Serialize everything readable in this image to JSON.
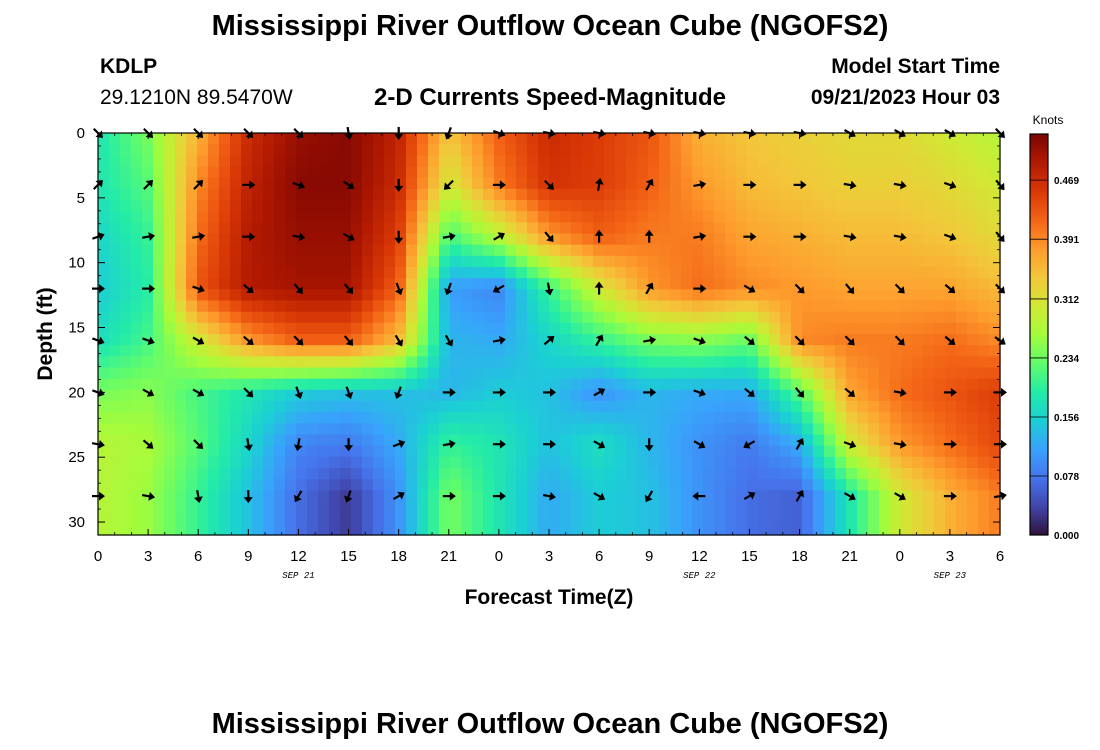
{
  "header": {
    "title": "Mississippi River Outflow Ocean Cube (NGOFS2)",
    "station": "KDLP",
    "coords": "29.1210N  89.5470W",
    "subtitle": "2-D Currents Speed-Magnitude",
    "model_label": "Model Start Time",
    "model_time": "09/21/2023 Hour 03"
  },
  "footer": {
    "title": "Mississippi River Outflow Ocean Cube (NGOFS2)"
  },
  "chart_data": {
    "type": "heatmap",
    "title": "2-D Currents Speed-Magnitude",
    "xlabel": "Forecast Time(Z)",
    "ylabel": "Depth (ft)",
    "x_tick_labels": [
      "0",
      "3",
      "6",
      "9",
      "12",
      "15",
      "18",
      "21",
      "0",
      "3",
      "6",
      "9",
      "12",
      "15",
      "18",
      "21",
      "0",
      "3",
      "6"
    ],
    "date_labels": [
      {
        "text": "SEP 21",
        "hours": 12
      },
      {
        "text": "SEP 22",
        "hours": 36
      },
      {
        "text": "SEP 23",
        "hours": 51
      }
    ],
    "x_range_hours": [
      0,
      54
    ],
    "y_ticks": [
      0,
      5,
      10,
      15,
      20,
      25,
      30
    ],
    "ylim": [
      0,
      31
    ],
    "colorbar": {
      "title": "Knots",
      "ticks": [
        0.0,
        0.078,
        0.156,
        0.234,
        0.312,
        0.391,
        0.469
      ],
      "tick_labels": [
        "0.000",
        "0.078",
        "0.156",
        "0.234",
        "0.312",
        "0.391",
        "0.469"
      ],
      "range": [
        0,
        0.53
      ],
      "colors": [
        "#30123b",
        "#4145ab",
        "#4675ed",
        "#39a2fc",
        "#1bcfd4",
        "#24eca6",
        "#61fc6c",
        "#a4fc3b",
        "#d1e834",
        "#f3c63a",
        "#fe9b2d",
        "#f36315",
        "#d93806",
        "#b11901",
        "#7a0402"
      ]
    },
    "depth_levels_ft": [
      0,
      4,
      8,
      12,
      16,
      20,
      24,
      28
    ],
    "time_hours": [
      0,
      3,
      6,
      9,
      12,
      15,
      18,
      21,
      24,
      27,
      30,
      33,
      36,
      39,
      42,
      45,
      48,
      51,
      54
    ],
    "speed_knots": [
      [
        0.18,
        0.24,
        0.36,
        0.47,
        0.51,
        0.52,
        0.48,
        0.34,
        0.42,
        0.47,
        0.45,
        0.43,
        0.36,
        0.34,
        0.33,
        0.32,
        0.32,
        0.3,
        0.28
      ],
      [
        0.18,
        0.22,
        0.39,
        0.48,
        0.52,
        0.52,
        0.47,
        0.3,
        0.4,
        0.46,
        0.45,
        0.42,
        0.38,
        0.35,
        0.34,
        0.33,
        0.33,
        0.32,
        0.3
      ],
      [
        0.16,
        0.2,
        0.41,
        0.49,
        0.51,
        0.51,
        0.45,
        0.21,
        0.28,
        0.38,
        0.42,
        0.4,
        0.4,
        0.37,
        0.36,
        0.35,
        0.35,
        0.34,
        0.32
      ],
      [
        0.15,
        0.19,
        0.43,
        0.49,
        0.5,
        0.5,
        0.42,
        0.11,
        0.09,
        0.2,
        0.3,
        0.38,
        0.41,
        0.39,
        0.38,
        0.37,
        0.37,
        0.37,
        0.35
      ],
      [
        0.17,
        0.21,
        0.3,
        0.38,
        0.42,
        0.42,
        0.35,
        0.13,
        0.12,
        0.16,
        0.2,
        0.24,
        0.25,
        0.23,
        0.39,
        0.4,
        0.4,
        0.41,
        0.39
      ],
      [
        0.24,
        0.25,
        0.21,
        0.18,
        0.15,
        0.14,
        0.14,
        0.13,
        0.15,
        0.14,
        0.1,
        0.13,
        0.12,
        0.12,
        0.22,
        0.37,
        0.41,
        0.43,
        0.45
      ],
      [
        0.28,
        0.27,
        0.22,
        0.16,
        0.09,
        0.08,
        0.12,
        0.2,
        0.18,
        0.14,
        0.17,
        0.13,
        0.1,
        0.08,
        0.12,
        0.3,
        0.38,
        0.41,
        0.44
      ],
      [
        0.28,
        0.26,
        0.2,
        0.14,
        0.07,
        0.03,
        0.1,
        0.24,
        0.18,
        0.12,
        0.15,
        0.14,
        0.1,
        0.07,
        0.06,
        0.18,
        0.3,
        0.36,
        0.4
      ]
    ],
    "direction_deg": [
      [
        135,
        135,
        135,
        135,
        135,
        170,
        180,
        200,
        110,
        100,
        100,
        100,
        100,
        100,
        100,
        120,
        120,
        120,
        135
      ],
      [
        45,
        45,
        45,
        90,
        110,
        125,
        180,
        225,
        90,
        135,
        10,
        30,
        80,
        90,
        90,
        100,
        100,
        110,
        140
      ],
      [
        70,
        80,
        80,
        90,
        100,
        120,
        180,
        80,
        60,
        140,
        0,
        0,
        80,
        90,
        90,
        100,
        100,
        110,
        140
      ],
      [
        90,
        90,
        110,
        130,
        140,
        140,
        160,
        200,
        240,
        170,
        0,
        30,
        90,
        120,
        135,
        140,
        135,
        130,
        135
      ],
      [
        110,
        110,
        120,
        130,
        135,
        140,
        150,
        150,
        80,
        50,
        30,
        80,
        110,
        130,
        135,
        135,
        135,
        130,
        125
      ],
      [
        110,
        120,
        120,
        135,
        160,
        160,
        200,
        90,
        90,
        90,
        60,
        90,
        110,
        130,
        140,
        130,
        100,
        90,
        90
      ],
      [
        100,
        130,
        135,
        170,
        190,
        180,
        70,
        80,
        90,
        90,
        120,
        180,
        120,
        240,
        30,
        110,
        100,
        90,
        90
      ],
      [
        90,
        100,
        170,
        180,
        210,
        200,
        60,
        90,
        90,
        100,
        120,
        210,
        270,
        60,
        30,
        120,
        120,
        90,
        80
      ]
    ]
  }
}
